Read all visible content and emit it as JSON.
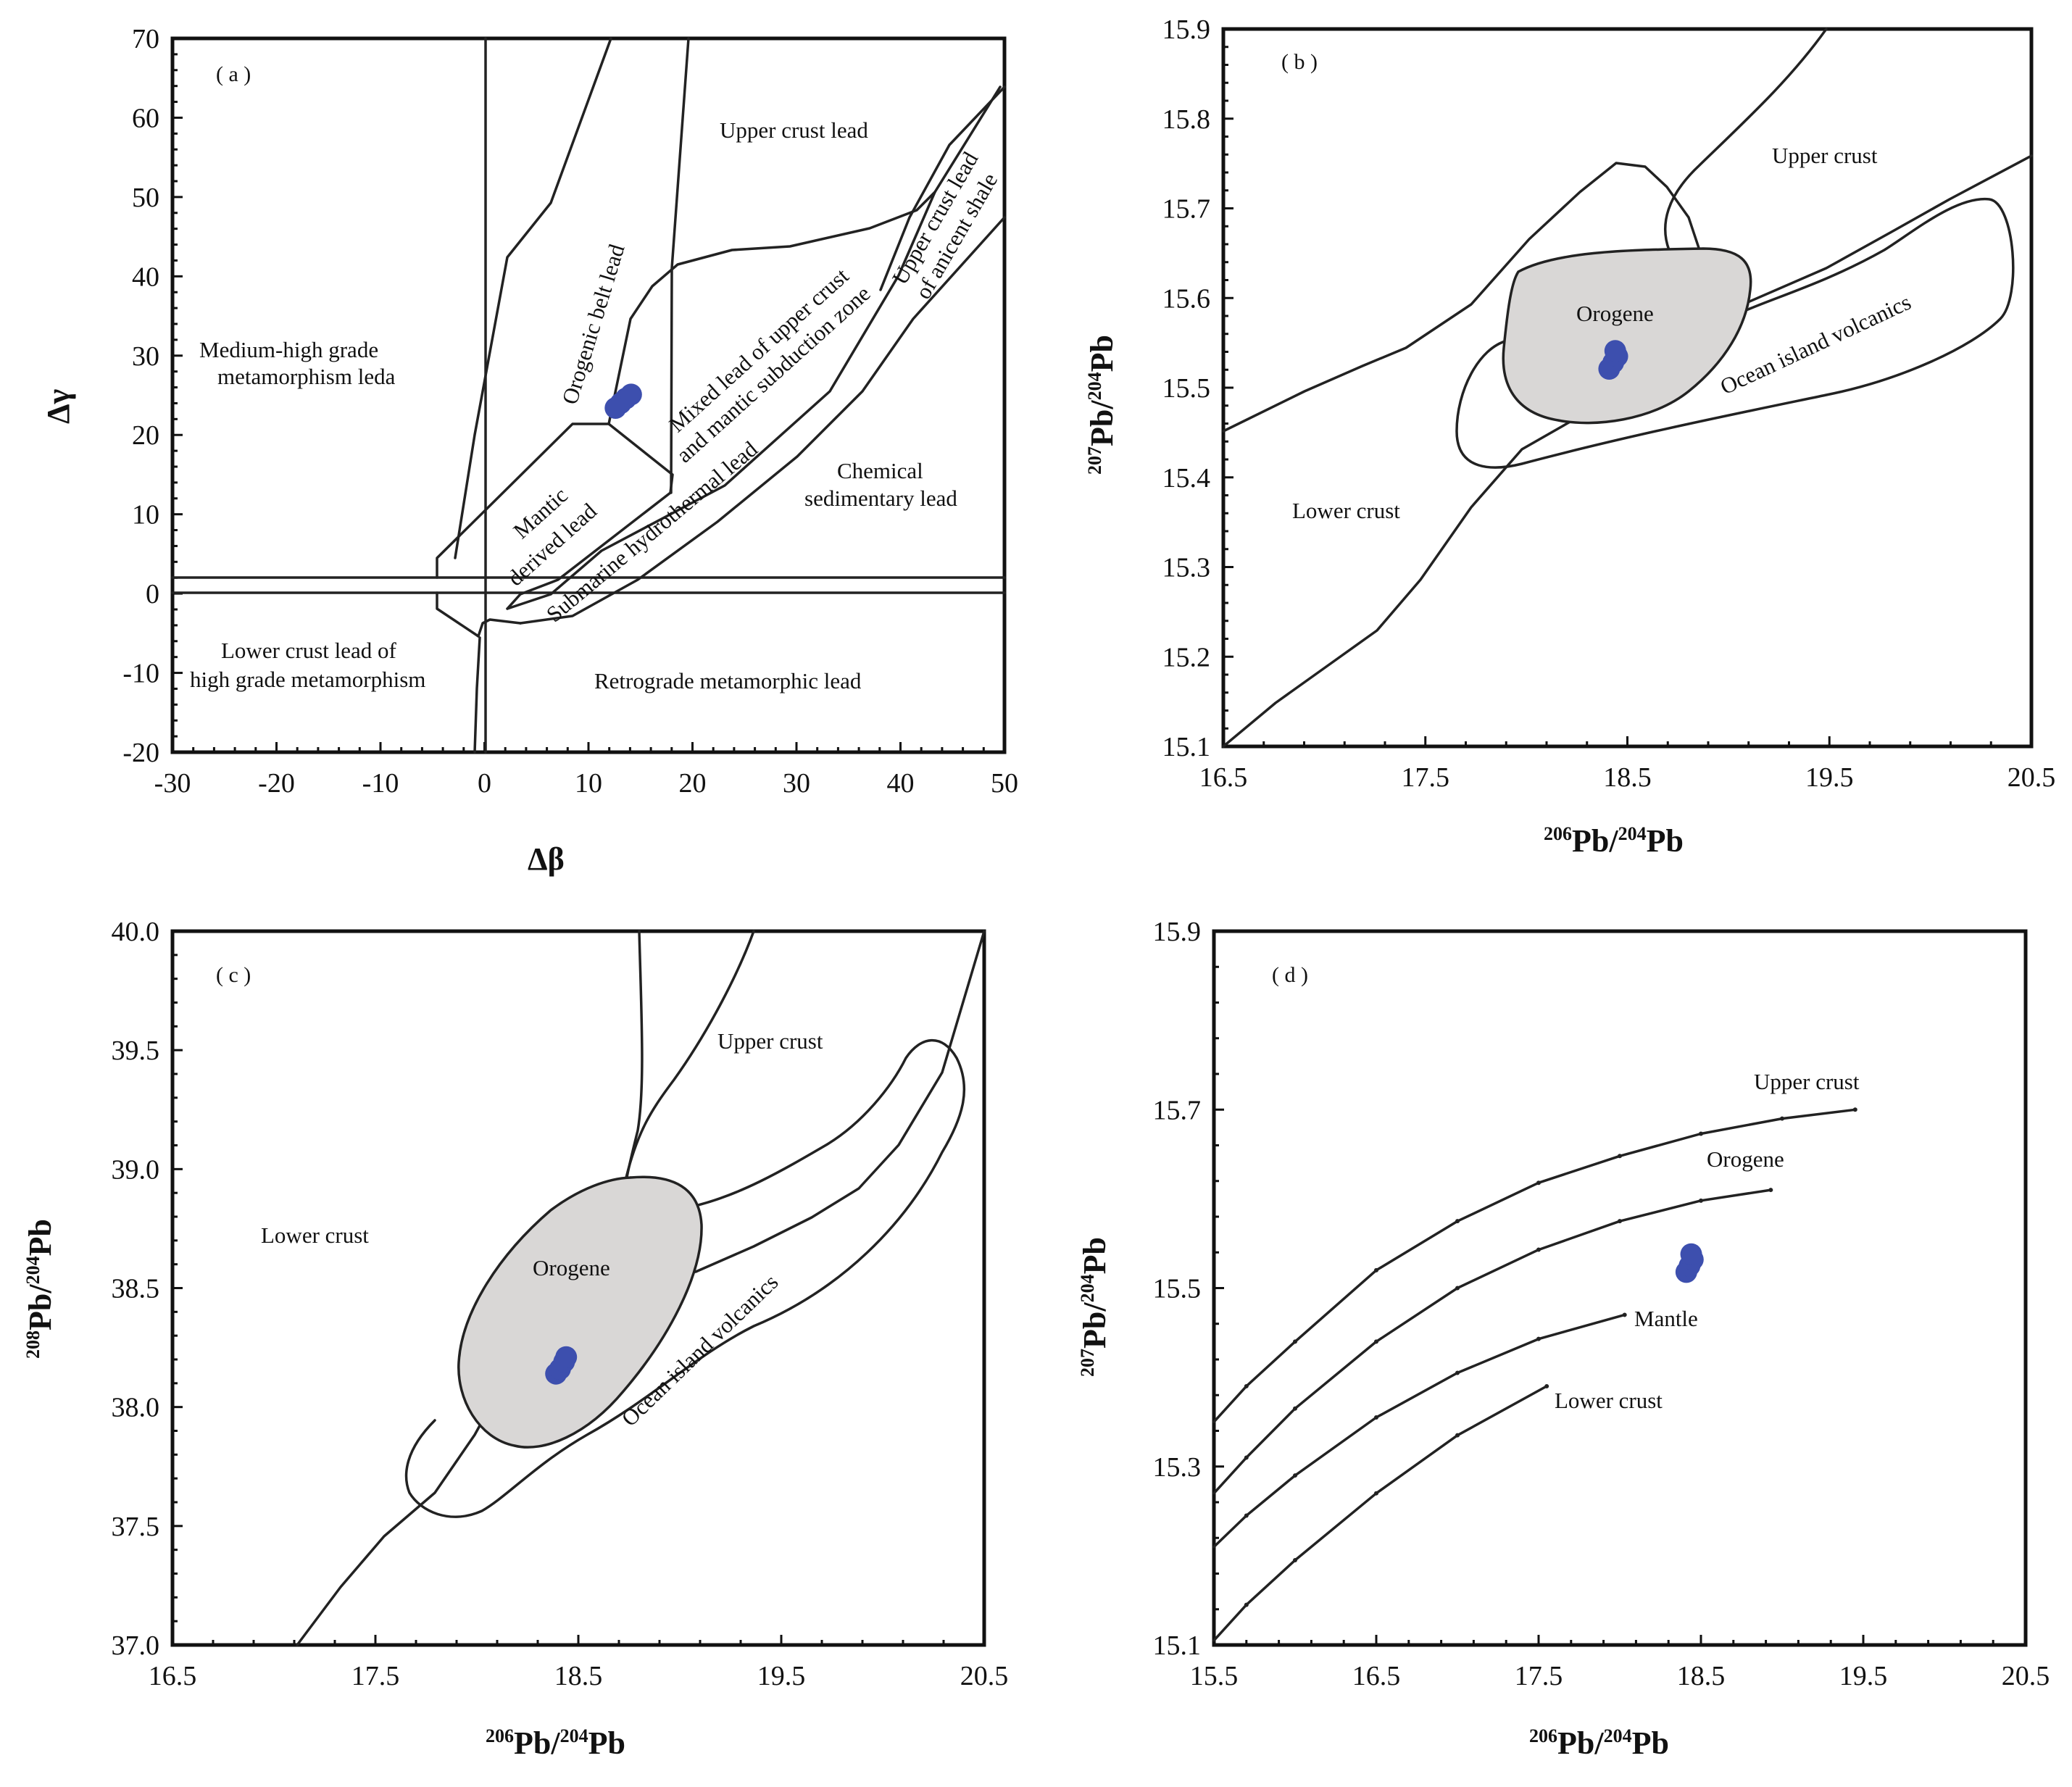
{
  "colors": {
    "sample_points": "#3d4fae",
    "orogene_fill": "#d9d7d6",
    "line": "#222222"
  },
  "chart_data": [
    {
      "panel": "(a)",
      "type": "scatter",
      "title": "",
      "xlabel": "Δβ",
      "ylabel": "Δγ",
      "xlim": [
        -30,
        50
      ],
      "ylim": [
        -20,
        70
      ],
      "xticks": [
        -30,
        -20,
        -10,
        0,
        10,
        20,
        30,
        40,
        50
      ],
      "yticks": [
        -20,
        -10,
        0,
        10,
        20,
        30,
        40,
        50,
        60,
        70
      ],
      "regions": [
        "Upper crust lead",
        "Orogenic belt lead",
        "Mixed lead of upper crust",
        "and mantic subduction zone",
        "Upper crust lead",
        "of anicent shale",
        "Medium-high grade",
        "metamorphism leda",
        "Mantic",
        "derived lead",
        "Submarine hydrothermal lead",
        "Chemical",
        "sedimentary lead",
        "Lower crust lead of",
        "high grade metamorphism",
        "Retrograde metamorphic lead"
      ],
      "series": [
        {
          "name": "samples",
          "x": [
            12.6,
            13.1,
            13.6,
            14.1
          ],
          "y": [
            23.4,
            24.0,
            24.6,
            25.1
          ]
        }
      ]
    },
    {
      "panel": "(b)",
      "type": "scatter",
      "title": "",
      "xlabel_sup1": "206",
      "xlabel_mid": "Pb/",
      "xlabel_sup2": "204",
      "xlabel_end": "Pb",
      "ylabel_sup1": "207",
      "ylabel_mid": "Pb/",
      "ylabel_sup2": "204",
      "ylabel_end": "Pb",
      "xlim": [
        16.5,
        20.5
      ],
      "ylim": [
        15.1,
        15.9
      ],
      "xticks": [
        "16.5",
        "17.5",
        "18.5",
        "19.5",
        "20.5"
      ],
      "yticks": [
        "15.1",
        "15.2",
        "15.3",
        "15.4",
        "15.5",
        "15.6",
        "15.7",
        "15.8",
        "15.9"
      ],
      "regions": [
        "Upper crust",
        "Orogene",
        "Ocean island volcanics",
        "Lower crust"
      ],
      "series": [
        {
          "name": "samples",
          "x": [
            18.41,
            18.43,
            18.45,
            18.44
          ],
          "y": [
            15.521,
            15.528,
            15.535,
            15.541
          ]
        }
      ]
    },
    {
      "panel": "(c)",
      "type": "scatter",
      "title": "",
      "xlabel_sup1": "206",
      "xlabel_mid": "Pb/",
      "xlabel_sup2": "204",
      "xlabel_end": "Pb",
      "ylabel_sup1": "208",
      "ylabel_mid": "Pb/",
      "ylabel_sup2": "204",
      "ylabel_end": "Pb",
      "xlim": [
        16.5,
        20.5
      ],
      "ylim": [
        37.0,
        40.0
      ],
      "xticks": [
        "16.5",
        "17.5",
        "18.5",
        "19.5",
        "20.5"
      ],
      "yticks": [
        "37.0",
        "37.5",
        "38.0",
        "38.5",
        "39.0",
        "39.5",
        "40.0"
      ],
      "regions": [
        "Upper crust",
        "Lower crust",
        "Orogene",
        "Ocean island volcanics"
      ],
      "series": [
        {
          "name": "samples",
          "x": [
            18.39,
            18.41,
            18.43,
            18.44
          ],
          "y": [
            38.14,
            38.16,
            38.19,
            38.21
          ]
        }
      ]
    },
    {
      "panel": "(d)",
      "type": "line",
      "title": "",
      "xlabel_sup1": "206",
      "xlabel_mid": "Pb/",
      "xlabel_sup2": "204",
      "xlabel_end": "Pb",
      "ylabel_sup1": "207",
      "ylabel_mid": "Pb/",
      "ylabel_sup2": "204",
      "ylabel_end": "Pb",
      "xlim": [
        15.5,
        20.5
      ],
      "ylim": [
        15.1,
        15.9
      ],
      "xticks": [
        "15.5",
        "16.5",
        "17.5",
        "18.5",
        "19.5",
        "20.5"
      ],
      "yticks": [
        "15.1",
        "15.3",
        "15.5",
        "15.7",
        "15.9"
      ],
      "curves": [
        {
          "name": "Upper crust",
          "x": [
            15.5,
            15.7,
            16.0,
            16.5,
            17.0,
            17.5,
            18.0,
            18.5,
            19.0,
            19.45
          ],
          "y": [
            15.35,
            15.39,
            15.44,
            15.52,
            15.575,
            15.618,
            15.648,
            15.673,
            15.69,
            15.7
          ]
        },
        {
          "name": "Orogene",
          "x": [
            15.5,
            15.7,
            16.0,
            16.5,
            17.0,
            17.5,
            18.0,
            18.5,
            18.93
          ],
          "y": [
            15.27,
            15.31,
            15.365,
            15.44,
            15.5,
            15.543,
            15.575,
            15.598,
            15.61
          ]
        },
        {
          "name": "Mantle",
          "x": [
            15.5,
            15.7,
            16.0,
            16.5,
            17.0,
            17.5,
            18.03
          ],
          "y": [
            15.21,
            15.245,
            15.29,
            15.355,
            15.405,
            15.443,
            15.47
          ]
        },
        {
          "name": "Lower crust",
          "x": [
            15.5,
            15.7,
            16.0,
            16.5,
            17.0,
            17.55
          ],
          "y": [
            15.105,
            15.145,
            15.195,
            15.27,
            15.335,
            15.39
          ]
        }
      ],
      "series": [
        {
          "name": "samples",
          "x": [
            18.41,
            18.43,
            18.45,
            18.44
          ],
          "y": [
            15.518,
            15.525,
            15.532,
            15.538
          ]
        }
      ]
    }
  ]
}
